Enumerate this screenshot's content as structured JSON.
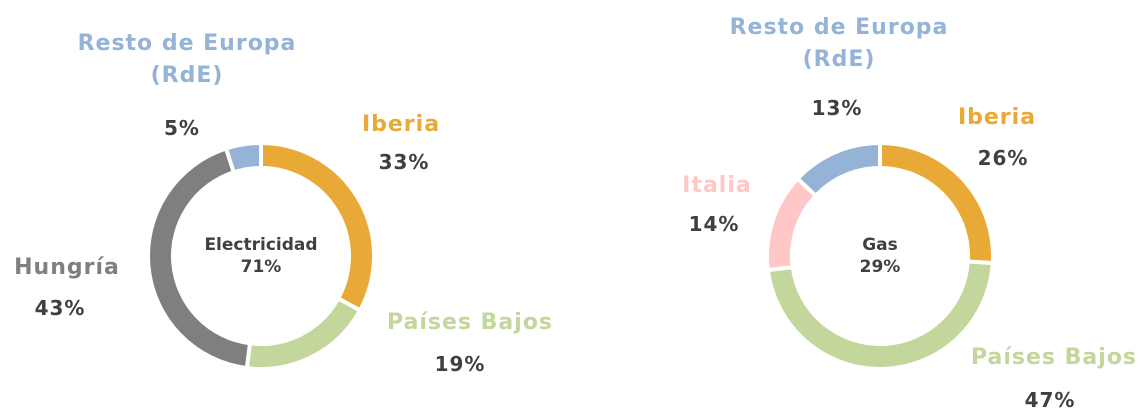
{
  "chart_data": [
    {
      "type": "donut",
      "center_label": "Electricidad",
      "center_value": 71,
      "center_value_label": "71%",
      "categories": [
        "Iberia",
        "Países Bajos",
        "Hungría",
        "Resto de Europa (RdE)"
      ],
      "values": [
        33,
        19,
        43,
        5
      ],
      "value_labels": [
        "33%",
        "19%",
        "43%",
        "5%"
      ],
      "colors": [
        "#e9a936",
        "#c3d69b",
        "#7f7f7f",
        "#95b3d7"
      ]
    },
    {
      "type": "donut",
      "center_label": "Gas",
      "center_value": 29,
      "center_value_label": "29%",
      "categories": [
        "Iberia",
        "Países Bajos",
        "Italia",
        "Resto de Europa (RdE)"
      ],
      "values": [
        26,
        47,
        14,
        13
      ],
      "value_labels": [
        "26%",
        "47%",
        "14%",
        "13%"
      ],
      "colors": [
        "#e9a936",
        "#c3d69b",
        "#ffc7c7",
        "#95b3d7"
      ]
    }
  ]
}
